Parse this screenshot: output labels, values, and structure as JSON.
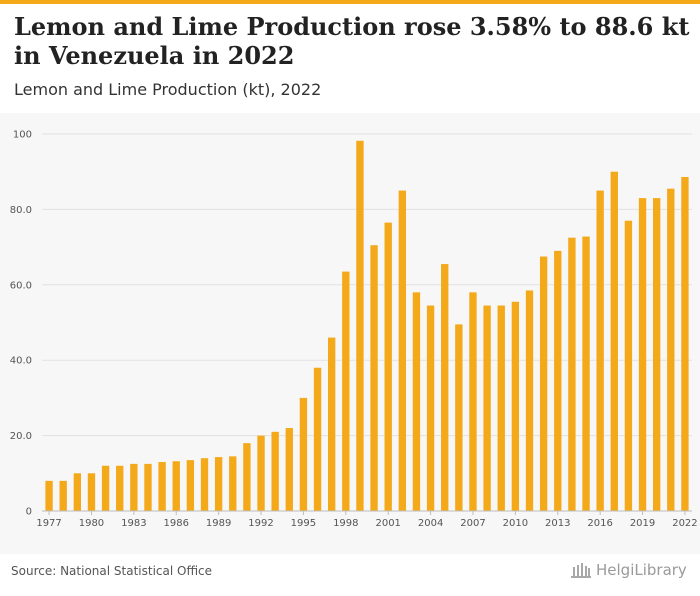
{
  "header": {
    "title": "Lemon and Lime Production rose 3.58% to 88.6 kt in Venezuela in 2022",
    "subtitle": "Lemon and Lime Production (kt), 2022"
  },
  "footer": {
    "source": "Source: National Statistical Office",
    "brand": "HelgiLibrary"
  },
  "colors": {
    "accent": "#f3a91a",
    "bar": "#f3a91a",
    "grid": "#e2e2e2"
  },
  "chart_data": {
    "type": "bar",
    "x": [
      1977,
      1978,
      1979,
      1980,
      1981,
      1982,
      1983,
      1984,
      1985,
      1986,
      1987,
      1988,
      1989,
      1990,
      1991,
      1992,
      1993,
      1994,
      1995,
      1996,
      1997,
      1998,
      1999,
      2000,
      2001,
      2002,
      2003,
      2004,
      2005,
      2006,
      2007,
      2008,
      2009,
      2010,
      2011,
      2012,
      2013,
      2014,
      2015,
      2016,
      2017,
      2018,
      2019,
      2020,
      2021,
      2022
    ],
    "values": [
      8,
      8,
      10,
      10,
      12,
      12,
      12.5,
      12.5,
      13,
      13.2,
      13.5,
      14,
      14.3,
      14.5,
      18,
      20,
      21,
      22,
      30,
      38,
      46,
      63.5,
      98.2,
      70.5,
      76.5,
      85,
      58,
      54.5,
      65.5,
      49.5,
      58,
      54.5,
      54.5,
      55.5,
      58.5,
      67.5,
      69,
      72.5,
      72.8,
      85,
      90,
      77,
      83,
      83,
      85.5,
      88.6
    ],
    "x_tick_labels": [
      "1977",
      "1980",
      "1983",
      "1986",
      "1989",
      "1992",
      "1995",
      "1998",
      "2001",
      "2004",
      "2007",
      "2010",
      "2013",
      "2016",
      "2019",
      "2022"
    ],
    "y_tick_labels": [
      "0",
      "20.0",
      "40.0",
      "60.0",
      "80.0",
      "100"
    ],
    "y_ticks": [
      0,
      20,
      40,
      60,
      80,
      100
    ],
    "ylim": [
      0,
      100
    ],
    "grid": true
  }
}
